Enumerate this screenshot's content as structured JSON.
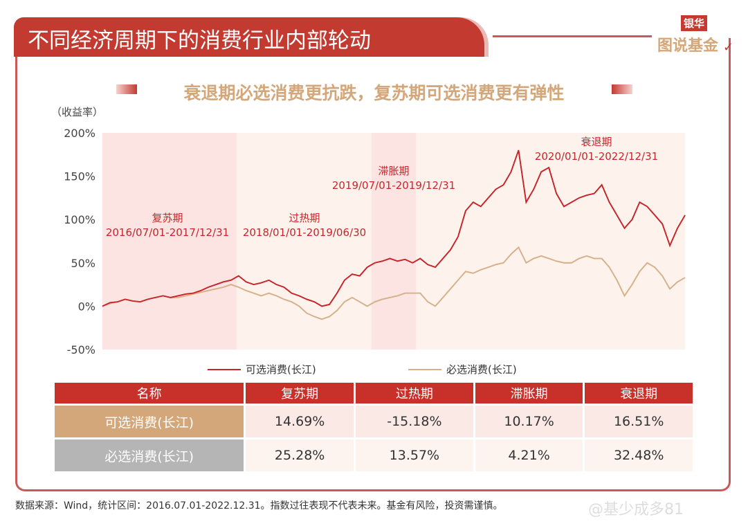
{
  "header": {
    "title": "不同经济周期下的消费行业内部轮动",
    "logo_top": "银华",
    "logo_bottom": "图说基金"
  },
  "subtitle": "衰退期必选消费更抗跌，复苏期可选消费更有弹性",
  "chart_data": {
    "type": "line",
    "ylabel": "（收益率）",
    "ylim": [
      -50,
      200
    ],
    "yticks": [
      "200%",
      "150%",
      "100%",
      "50%",
      "0%",
      "-50%"
    ],
    "ytick_values": [
      200,
      150,
      100,
      50,
      0,
      -50
    ],
    "x_start": "2016-07",
    "x_end": "2022-12",
    "x_frequency": "monthly",
    "periods": [
      {
        "name": "复苏期",
        "range": "2016/07/01-2017/12/31",
        "start": "2016-07",
        "end": "2017-12",
        "color": "#fbe4e2"
      },
      {
        "name": "过热期",
        "range": "2018/01/01-2019/06/30",
        "start": "2018-01",
        "end": "2019-06",
        "color": "#fdf3ec"
      },
      {
        "name": "滞胀期",
        "range": "2019/07/01-2019/12/31",
        "start": "2019-07",
        "end": "2019-12",
        "color": "#fbe4e2"
      },
      {
        "name": "衰退期",
        "range": "2020/01/01-2022/12/31",
        "start": "2020-01",
        "end": "2022-12",
        "color": "#fdf3ec"
      }
    ],
    "series": [
      {
        "name": "可选消费(长江)",
        "color": "#c8252a",
        "values": [
          0,
          4,
          5,
          8,
          6,
          5,
          8,
          10,
          12,
          10,
          12,
          14,
          15,
          18,
          22,
          25,
          28,
          30,
          35,
          28,
          25,
          27,
          30,
          25,
          22,
          15,
          12,
          8,
          5,
          0,
          2,
          15,
          30,
          37,
          35,
          45,
          50,
          52,
          55,
          52,
          54,
          50,
          55,
          48,
          45,
          55,
          65,
          80,
          110,
          120,
          115,
          125,
          135,
          140,
          155,
          180,
          120,
          135,
          155,
          160,
          130,
          115,
          120,
          125,
          128,
          130,
          140,
          120,
          105,
          90,
          100,
          120,
          115,
          105,
          95,
          70,
          90,
          105
        ]
      },
      {
        "name": "必选消费(长江)",
        "color": "#d6b08a",
        "values": [
          0,
          3,
          5,
          8,
          6,
          5,
          8,
          10,
          12,
          10,
          10,
          12,
          14,
          16,
          18,
          20,
          22,
          25,
          22,
          18,
          15,
          12,
          15,
          12,
          8,
          5,
          0,
          -8,
          -12,
          -15,
          -12,
          -5,
          5,
          10,
          5,
          0,
          5,
          8,
          10,
          12,
          15,
          15,
          15,
          5,
          0,
          10,
          20,
          30,
          40,
          38,
          42,
          45,
          48,
          50,
          60,
          68,
          50,
          55,
          58,
          55,
          52,
          50,
          50,
          55,
          58,
          55,
          55,
          45,
          30,
          12,
          25,
          40,
          50,
          45,
          35,
          20,
          28,
          33
        ]
      }
    ],
    "legend_position": "bottom"
  },
  "table": {
    "headers": [
      "名称",
      "复苏期",
      "过热期",
      "滞胀期",
      "衰退期"
    ],
    "rows": [
      {
        "label": "可选消费(长江)",
        "values": [
          "14.69%",
          "-15.18%",
          "10.17%",
          "16.51%"
        ]
      },
      {
        "label": "必选消费(长江)",
        "values": [
          "25.28%",
          "13.57%",
          "4.21%",
          "32.48%"
        ]
      }
    ]
  },
  "footer": "数据来源：Wind，统计区间：2016.07.01-2022.12.31。指数过往表现不代表未来。基金有风险，投资需谨慎。",
  "watermark": "@基少成多81"
}
